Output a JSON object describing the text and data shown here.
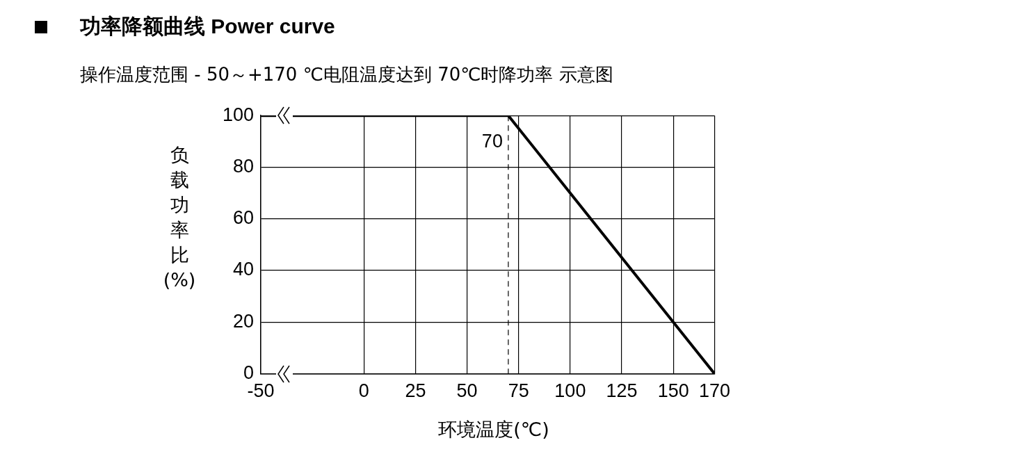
{
  "chart_data": {
    "type": "line",
    "title": "功率降额曲线 Power curve",
    "subtitle": "操作温度范围 - 50～+170 ℃电阻温度达到 70℃时降功率 示意图",
    "xlabel": "环境温度(℃)",
    "ylabel": "负载功率比(%)",
    "series": [
      {
        "color": "#000000",
        "x": [
          -50,
          70,
          170
        ],
        "values": [
          100,
          100,
          0
        ]
      }
    ],
    "xlim": [
      -50,
      170
    ],
    "xticks": [
      -50,
      0,
      25,
      50,
      75,
      100,
      125,
      150,
      170
    ],
    "ylim": [
      0,
      100
    ],
    "yticks": [
      0,
      20,
      40,
      60,
      80,
      100
    ],
    "ref_lines": [
      {
        "axis": "x",
        "value": 70,
        "label": "70",
        "line_style": "dashed"
      }
    ],
    "grid": true,
    "legend": false,
    "marker": "none",
    "line_style": "solid"
  }
}
